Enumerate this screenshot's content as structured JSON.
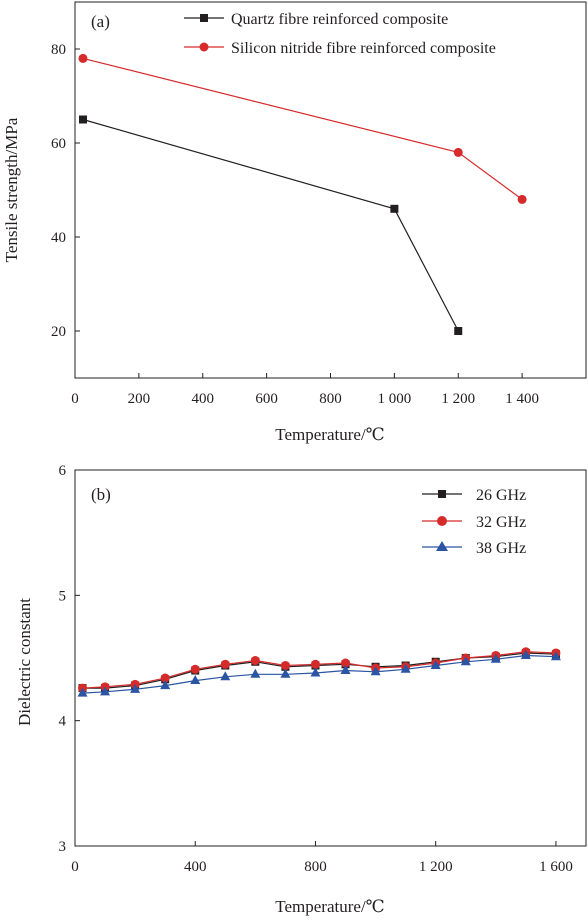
{
  "chart_data": [
    {
      "panel_label": "(a)",
      "type": "line",
      "xlabel": "Temperature/℃",
      "ylabel": "Tensile strength/MPa",
      "xlim": [
        0,
        1600
      ],
      "ylim": [
        10,
        90
      ],
      "xticks": [
        0,
        200,
        400,
        600,
        800,
        1000,
        1200,
        1400
      ],
      "xtick_labels": [
        "0",
        "200",
        "400",
        "600",
        "800",
        "1 000",
        "1 200",
        "1 400"
      ],
      "yticks": [
        20,
        40,
        60,
        80
      ],
      "ytick_labels": [
        "20",
        "40",
        "60",
        "80"
      ],
      "legend_position": "top-right",
      "grid": false,
      "series": [
        {
          "name": "Quartz fibre reinforced composite",
          "color": "#231f20",
          "marker": "square",
          "x": [
            25,
            1000,
            1200
          ],
          "y": [
            65,
            46,
            20
          ]
        },
        {
          "name": "Silicon nitride fibre reinforced composite",
          "color": "#d62b2b",
          "marker": "circle",
          "x": [
            25,
            1200,
            1400
          ],
          "y": [
            78,
            58,
            48
          ]
        }
      ]
    },
    {
      "panel_label": "(b)",
      "type": "line",
      "xlabel": "Temperature/℃",
      "ylabel": "Dielectric constant",
      "xlim": [
        0,
        1700
      ],
      "ylim": [
        3,
        6
      ],
      "xticks": [
        0,
        400,
        800,
        1200,
        1600
      ],
      "xtick_labels": [
        "0",
        "400",
        "800",
        "1 200",
        "1 600"
      ],
      "yticks": [
        3,
        4,
        5,
        6
      ],
      "ytick_labels": [
        "3",
        "4",
        "5",
        "6"
      ],
      "legend_position": "top-right",
      "grid": false,
      "series": [
        {
          "name": "26 GHz",
          "color": "#231f20",
          "marker": "square",
          "x": [
            25,
            100,
            200,
            300,
            400,
            500,
            600,
            700,
            800,
            900,
            1000,
            1100,
            1200,
            1300,
            1400,
            1500,
            1600
          ],
          "y": [
            4.26,
            4.26,
            4.28,
            4.33,
            4.4,
            4.44,
            4.47,
            4.43,
            4.44,
            4.45,
            4.43,
            4.44,
            4.47,
            4.5,
            4.51,
            4.54,
            4.53
          ]
        },
        {
          "name": "32 GHz",
          "color": "#d62b2b",
          "marker": "circle",
          "x": [
            25,
            100,
            200,
            300,
            400,
            500,
            600,
            700,
            800,
            900,
            1000,
            1100,
            1200,
            1300,
            1400,
            1500,
            1600
          ],
          "y": [
            4.26,
            4.27,
            4.29,
            4.34,
            4.41,
            4.45,
            4.48,
            4.44,
            4.45,
            4.46,
            4.42,
            4.43,
            4.46,
            4.5,
            4.52,
            4.55,
            4.54
          ]
        },
        {
          "name": "38 GHz",
          "color": "#2b54a3",
          "marker": "triangle",
          "x": [
            25,
            100,
            200,
            300,
            400,
            500,
            600,
            700,
            800,
            900,
            1000,
            1100,
            1200,
            1300,
            1400,
            1500,
            1600
          ],
          "y": [
            4.22,
            4.23,
            4.25,
            4.28,
            4.32,
            4.35,
            4.37,
            4.37,
            4.38,
            4.4,
            4.39,
            4.41,
            4.44,
            4.47,
            4.49,
            4.52,
            4.51
          ]
        }
      ]
    }
  ]
}
